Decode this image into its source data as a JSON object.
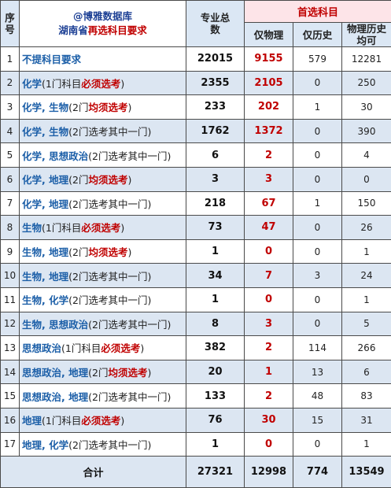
{
  "header": {
    "index_label": "序号",
    "brand_line": "@博雅数据库",
    "title_prefix": "湖南省",
    "title_red": "再选科目要求",
    "total_label": "专业总数",
    "first_choice_label": "首选科目",
    "col_physics": "仅物理",
    "col_history": "仅历史",
    "col_both": "物理历史均可"
  },
  "rows": [
    {
      "idx": "1",
      "subject": "不提科目要求",
      "note": "",
      "req": "",
      "close": "",
      "total": "22015",
      "physics": "9155",
      "history": "579",
      "both": "12281"
    },
    {
      "idx": "2",
      "subject": "化学",
      "note": "(1门科目",
      "req": "必须选考",
      "close": ")",
      "total": "2355",
      "physics": "2105",
      "history": "0",
      "both": "250"
    },
    {
      "idx": "3",
      "subject": "化学, 生物",
      "note": "(2门",
      "req": "均须选考",
      "close": ")",
      "total": "233",
      "physics": "202",
      "history": "1",
      "both": "30"
    },
    {
      "idx": "4",
      "subject": "化学, 生物",
      "note": "(2门选考其中一门)",
      "req": "",
      "close": "",
      "total": "1762",
      "physics": "1372",
      "history": "0",
      "both": "390"
    },
    {
      "idx": "5",
      "subject": "化学, 思想政治",
      "note": "(2门选考其中一门)",
      "req": "",
      "close": "",
      "total": "6",
      "physics": "2",
      "history": "0",
      "both": "4"
    },
    {
      "idx": "6",
      "subject": "化学, 地理",
      "note": "(2门",
      "req": "均须选考",
      "close": ")",
      "total": "3",
      "physics": "3",
      "history": "0",
      "both": "0"
    },
    {
      "idx": "7",
      "subject": "化学, 地理",
      "note": "(2门选考其中一门)",
      "req": "",
      "close": "",
      "total": "218",
      "physics": "67",
      "history": "1",
      "both": "150"
    },
    {
      "idx": "8",
      "subject": "生物",
      "note": "(1门科目",
      "req": "必须选考",
      "close": ")",
      "total": "73",
      "physics": "47",
      "history": "0",
      "both": "26"
    },
    {
      "idx": "9",
      "subject": "生物, 地理",
      "note": "(2门",
      "req": "均须选考",
      "close": ")",
      "total": "1",
      "physics": "0",
      "history": "0",
      "both": "1"
    },
    {
      "idx": "10",
      "subject": "生物, 地理",
      "note": "(2门选考其中一门)",
      "req": "",
      "close": "",
      "total": "34",
      "physics": "7",
      "history": "3",
      "both": "24"
    },
    {
      "idx": "11",
      "subject": "生物, 化学",
      "note": "(2门选考其中一门)",
      "req": "",
      "close": "",
      "total": "1",
      "physics": "0",
      "history": "0",
      "both": "1"
    },
    {
      "idx": "12",
      "subject": "生物, 思想政治",
      "note": "(2门选考其中一门)",
      "req": "",
      "close": "",
      "total": "8",
      "physics": "3",
      "history": "0",
      "both": "5"
    },
    {
      "idx": "13",
      "subject": "思想政治",
      "note": "(1门科目",
      "req": "必须选考",
      "close": ")",
      "total": "382",
      "physics": "2",
      "history": "114",
      "both": "266"
    },
    {
      "idx": "14",
      "subject": "思想政治, 地理",
      "note": "(2门",
      "req": "均须选考",
      "close": ")",
      "total": "20",
      "physics": "1",
      "history": "13",
      "both": "6"
    },
    {
      "idx": "15",
      "subject": "思想政治, 地理",
      "note": "(2门选考其中一门)",
      "req": "",
      "close": "",
      "total": "133",
      "physics": "2",
      "history": "48",
      "both": "83"
    },
    {
      "idx": "16",
      "subject": "地理",
      "note": "(1门科目",
      "req": "必须选考",
      "close": ")",
      "total": "76",
      "physics": "30",
      "history": "15",
      "both": "31"
    },
    {
      "idx": "17",
      "subject": "地理, 化学",
      "note": "(2门选考其中一门)",
      "req": "",
      "close": "",
      "total": "1",
      "physics": "0",
      "history": "0",
      "both": "1"
    }
  ],
  "footer": {
    "label": "合计",
    "total": "27321",
    "physics": "12998",
    "history": "774",
    "both": "13549"
  }
}
